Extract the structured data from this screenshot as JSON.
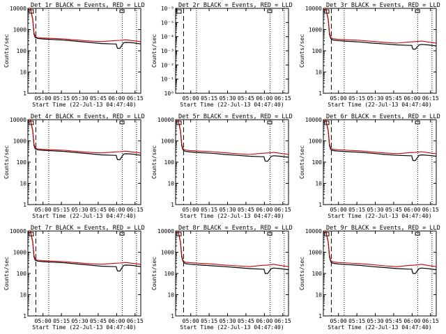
{
  "figure": {
    "xlabel": "Start Time (22-Jul-13 04:47:40)",
    "ylabel": "Counts/sec"
  },
  "colors": {
    "events": "#000000",
    "lld": "#cc0000"
  },
  "chart_data": [
    {
      "type": "line",
      "title": "Det 1r BLACK = Events, RED = LLD",
      "xlabel": "Start Time (22-Jul-13 04:47:40)",
      "ylabel": "Counts/sec",
      "x_ticks": [
        "05:00",
        "05:15",
        "05:30",
        "05:45",
        "06:00",
        "06:15"
      ],
      "y_ticks": [
        "1",
        "10",
        "100",
        "1000",
        "10000"
      ],
      "y_scale": "log",
      "ylim": [
        1,
        10000
      ],
      "x_unit": "minutes since 04:47:40",
      "xlim": [
        0,
        92
      ],
      "dashed_line_x": [
        6.5
      ],
      "dotted_lines_x": [
        17,
        77,
        88.5
      ],
      "series": [
        {
          "color": "#000000",
          "x": [
            0,
            2,
            4,
            5,
            6,
            7,
            8,
            12,
            20,
            30,
            40,
            50,
            60,
            70,
            72,
            73,
            75,
            78,
            80,
            85,
            92
          ],
          "values": [
            10000,
            10000,
            3000,
            600,
            420,
            400,
            380,
            360,
            340,
            320,
            280,
            250,
            220,
            210,
            210,
            130,
            130,
            240,
            250,
            240,
            210
          ]
        },
        {
          "color": "#cc0000",
          "x": [
            0,
            2,
            4,
            5,
            6,
            7,
            8,
            12,
            20,
            30,
            40,
            50,
            60,
            70,
            75,
            78,
            80,
            85,
            92
          ],
          "values": [
            10000,
            10000,
            3000,
            700,
            480,
            440,
            420,
            400,
            380,
            360,
            320,
            290,
            270,
            300,
            310,
            320,
            330,
            300,
            270
          ]
        }
      ]
    },
    {
      "type": "line",
      "title": "Det 2r BLACK = Events, RED = LLD",
      "xlabel": "Start Time (22-Jul-13 04:47:40)",
      "ylabel": "Counts/sec",
      "x_ticks": [
        "05:00",
        "05:15",
        "05:30",
        "05:45",
        "06:00",
        "06:15"
      ],
      "y_ticks": [
        "10⁰",
        "10⁻¹",
        "10⁻²",
        "10⁻³",
        "10⁻⁴",
        "10⁻⁵",
        "10⁻⁶"
      ],
      "y_scale": "log",
      "ylim": [
        1e-06,
        1
      ],
      "x_unit": "minutes since 04:47:40",
      "xlim": [
        0,
        92
      ],
      "dashed_line_x": [
        6.5
      ],
      "dotted_lines_x": [
        17,
        77,
        88.5
      ],
      "series": []
    },
    {
      "type": "line",
      "title": "Det 3r BLACK = Events, RED = LLD",
      "xlabel": "Start Time (22-Jul-13 04:47:40)",
      "ylabel": "Counts/sec",
      "x_ticks": [
        "05:00",
        "05:15",
        "05:30",
        "05:45",
        "06:00",
        "06:15"
      ],
      "y_ticks": [
        "1",
        "10",
        "100",
        "1000",
        "10000"
      ],
      "y_scale": "log",
      "ylim": [
        1,
        10000
      ],
      "x_unit": "minutes since 04:47:40",
      "xlim": [
        0,
        92
      ],
      "dashed_line_x": [
        6.5
      ],
      "dotted_lines_x": [
        17,
        77,
        88.5
      ],
      "series": [
        {
          "color": "#000000",
          "x": [
            0,
            2,
            4,
            5,
            6,
            7,
            8,
            12,
            20,
            30,
            40,
            50,
            60,
            70,
            72,
            73,
            75,
            78,
            80,
            85,
            92
          ],
          "values": [
            10000,
            10000,
            3000,
            600,
            380,
            340,
            320,
            300,
            280,
            260,
            230,
            210,
            190,
            180,
            180,
            120,
            120,
            190,
            200,
            190,
            170
          ]
        },
        {
          "color": "#cc0000",
          "x": [
            0,
            2,
            4,
            5,
            6,
            7,
            8,
            12,
            20,
            30,
            40,
            50,
            60,
            70,
            75,
            78,
            80,
            85,
            92
          ],
          "values": [
            10000,
            10000,
            3000,
            700,
            440,
            390,
            370,
            350,
            330,
            310,
            280,
            250,
            230,
            260,
            270,
            280,
            290,
            260,
            230
          ]
        }
      ]
    },
    {
      "type": "line",
      "title": "Det 4r BLACK = Events, RED = LLD",
      "xlabel": "Start Time (22-Jul-13 04:47:40)",
      "ylabel": "Counts/sec",
      "x_ticks": [
        "05:00",
        "05:15",
        "05:30",
        "05:45",
        "06:00",
        "06:15"
      ],
      "y_ticks": [
        "1",
        "10",
        "100",
        "1000",
        "10000"
      ],
      "y_scale": "log",
      "ylim": [
        1,
        10000
      ],
      "x_unit": "minutes since 04:47:40",
      "xlim": [
        0,
        92
      ],
      "dashed_line_x": [
        6.5
      ],
      "dotted_lines_x": [
        17,
        77,
        88.5
      ],
      "series": [
        {
          "color": "#000000",
          "x": [
            0,
            2,
            4,
            5,
            6,
            7,
            8,
            12,
            20,
            30,
            40,
            50,
            60,
            70,
            72,
            73,
            75,
            78,
            80,
            85,
            92
          ],
          "values": [
            10000,
            10000,
            3000,
            600,
            420,
            400,
            380,
            360,
            340,
            320,
            280,
            250,
            220,
            210,
            210,
            130,
            130,
            240,
            250,
            240,
            210
          ]
        },
        {
          "color": "#cc0000",
          "x": [
            0,
            2,
            4,
            5,
            6,
            7,
            8,
            12,
            20,
            30,
            40,
            50,
            60,
            70,
            75,
            78,
            80,
            85,
            92
          ],
          "values": [
            10000,
            10000,
            3000,
            700,
            480,
            440,
            420,
            400,
            380,
            360,
            320,
            290,
            270,
            300,
            310,
            320,
            330,
            300,
            270
          ]
        }
      ]
    },
    {
      "type": "line",
      "title": "Det 5r BLACK = Events, RED = LLD",
      "xlabel": "Start Time (22-Jul-13 04:47:40)",
      "ylabel": "Counts/sec",
      "x_ticks": [
        "05:00",
        "05:15",
        "05:30",
        "05:45",
        "06:00",
        "06:15"
      ],
      "y_ticks": [
        "1",
        "10",
        "100",
        "1000",
        "10000"
      ],
      "y_scale": "log",
      "ylim": [
        1,
        10000
      ],
      "x_unit": "minutes since 04:47:40",
      "xlim": [
        0,
        92
      ],
      "dashed_line_x": [
        6.5
      ],
      "dotted_lines_x": [
        17,
        77,
        88.5
      ],
      "series": [
        {
          "color": "#000000",
          "x": [
            0,
            2,
            4,
            5,
            6,
            7,
            8,
            12,
            20,
            30,
            40,
            50,
            60,
            70,
            72,
            73,
            75,
            78,
            80,
            85,
            92
          ],
          "values": [
            10000,
            10000,
            3000,
            600,
            380,
            340,
            320,
            300,
            280,
            260,
            230,
            210,
            190,
            180,
            180,
            110,
            110,
            190,
            200,
            190,
            170
          ]
        },
        {
          "color": "#cc0000",
          "x": [
            0,
            2,
            4,
            5,
            6,
            7,
            8,
            12,
            20,
            30,
            40,
            50,
            60,
            70,
            75,
            78,
            80,
            85,
            92
          ],
          "values": [
            10000,
            10000,
            3000,
            700,
            440,
            390,
            370,
            350,
            330,
            310,
            280,
            250,
            230,
            260,
            270,
            280,
            290,
            260,
            230
          ]
        }
      ]
    },
    {
      "type": "line",
      "title": "Det 6r BLACK = Events, RED = LLD",
      "xlabel": "Start Time (22-Jul-13 04:47:40)",
      "ylabel": "Counts/sec",
      "x_ticks": [
        "05:00",
        "05:15",
        "05:30",
        "05:45",
        "06:00",
        "06:15"
      ],
      "y_ticks": [
        "1",
        "10",
        "100",
        "1000",
        "10000"
      ],
      "y_scale": "log",
      "ylim": [
        1,
        10000
      ],
      "x_unit": "minutes since 04:47:40",
      "xlim": [
        0,
        92
      ],
      "dashed_line_x": [
        6.5
      ],
      "dotted_lines_x": [
        17,
        77,
        88.5
      ],
      "series": [
        {
          "color": "#000000",
          "x": [
            0,
            2,
            4,
            5,
            6,
            7,
            8,
            12,
            20,
            30,
            40,
            50,
            60,
            70,
            72,
            73,
            75,
            78,
            80,
            85,
            92
          ],
          "values": [
            10000,
            10000,
            3000,
            600,
            400,
            370,
            350,
            330,
            310,
            290,
            260,
            230,
            210,
            200,
            200,
            120,
            120,
            210,
            220,
            210,
            190
          ]
        },
        {
          "color": "#cc0000",
          "x": [
            0,
            2,
            4,
            5,
            6,
            7,
            8,
            12,
            20,
            30,
            40,
            50,
            60,
            70,
            75,
            78,
            80,
            85,
            92
          ],
          "values": [
            10000,
            10000,
            3000,
            700,
            460,
            420,
            400,
            380,
            360,
            340,
            300,
            270,
            250,
            280,
            290,
            300,
            310,
            280,
            250
          ]
        }
      ]
    },
    {
      "type": "line",
      "title": "Det 7r BLACK = Events, RED = LLD",
      "xlabel": "Start Time (22-Jul-13 04:47:40)",
      "ylabel": "Counts/sec",
      "x_ticks": [
        "05:00",
        "05:15",
        "05:30",
        "05:45",
        "06:00",
        "06:15"
      ],
      "y_ticks": [
        "1",
        "10",
        "100",
        "1000",
        "10000"
      ],
      "y_scale": "log",
      "ylim": [
        1,
        10000
      ],
      "x_unit": "minutes since 04:47:40",
      "xlim": [
        0,
        92
      ],
      "dashed_line_x": [
        6.5
      ],
      "dotted_lines_x": [
        17,
        77,
        88.5
      ],
      "series": [
        {
          "color": "#000000",
          "x": [
            0,
            2,
            4,
            5,
            6,
            7,
            8,
            12,
            20,
            30,
            40,
            50,
            60,
            70,
            72,
            73,
            75,
            78,
            80,
            85,
            92
          ],
          "values": [
            10000,
            10000,
            3000,
            600,
            420,
            400,
            380,
            360,
            340,
            320,
            280,
            250,
            220,
            210,
            210,
            130,
            130,
            240,
            250,
            240,
            210
          ]
        },
        {
          "color": "#cc0000",
          "x": [
            0,
            2,
            4,
            5,
            6,
            7,
            8,
            12,
            20,
            30,
            40,
            50,
            60,
            70,
            75,
            78,
            80,
            85,
            92
          ],
          "values": [
            10000,
            10000,
            3000,
            700,
            480,
            440,
            420,
            400,
            380,
            360,
            320,
            290,
            270,
            300,
            310,
            320,
            330,
            300,
            270
          ]
        }
      ]
    },
    {
      "type": "line",
      "title": "Det 8r BLACK = Events, RED = LLD",
      "xlabel": "Start Time (22-Jul-13 04:47:40)",
      "ylabel": "Counts/sec",
      "x_ticks": [
        "05:00",
        "05:15",
        "05:30",
        "05:45",
        "06:00",
        "06:15"
      ],
      "y_ticks": [
        "1",
        "10",
        "100",
        "1000",
        "10000"
      ],
      "y_scale": "log",
      "ylim": [
        1,
        10000
      ],
      "x_unit": "minutes since 04:47:40",
      "xlim": [
        0,
        92
      ],
      "dashed_line_x": [
        6.5
      ],
      "dotted_lines_x": [
        17,
        77,
        88.5
      ],
      "series": [
        {
          "color": "#000000",
          "x": [
            0,
            2,
            4,
            5,
            6,
            7,
            8,
            12,
            20,
            30,
            40,
            50,
            60,
            70,
            72,
            73,
            75,
            78,
            80,
            85,
            92
          ],
          "values": [
            10000,
            10000,
            3000,
            600,
            380,
            320,
            290,
            270,
            250,
            230,
            210,
            190,
            170,
            160,
            160,
            100,
            100,
            170,
            180,
            170,
            150
          ]
        },
        {
          "color": "#cc0000",
          "x": [
            0,
            2,
            4,
            5,
            6,
            7,
            8,
            12,
            20,
            30,
            40,
            50,
            60,
            70,
            75,
            78,
            80,
            85,
            92
          ],
          "values": [
            10000,
            10000,
            3000,
            700,
            420,
            360,
            340,
            320,
            300,
            280,
            250,
            230,
            210,
            240,
            250,
            260,
            270,
            240,
            210
          ]
        }
      ]
    },
    {
      "type": "line",
      "title": "Det 9r BLACK = Events, RED = LLD",
      "xlabel": "Start Time (22-Jul-13 04:47:40)",
      "ylabel": "Counts/sec",
      "x_ticks": [
        "05:00",
        "05:15",
        "05:30",
        "05:45",
        "06:00",
        "06:15"
      ],
      "y_ticks": [
        "1",
        "10",
        "100",
        "1000",
        "10000"
      ],
      "y_scale": "log",
      "ylim": [
        1,
        10000
      ],
      "x_unit": "minutes since 04:47:40",
      "xlim": [
        0,
        92
      ],
      "dashed_line_x": [
        6.5
      ],
      "dotted_lines_x": [
        17,
        77,
        88.5
      ],
      "series": [
        {
          "color": "#000000",
          "x": [
            0,
            2,
            4,
            5,
            6,
            7,
            8,
            12,
            20,
            30,
            40,
            50,
            60,
            70,
            72,
            73,
            75,
            78,
            80,
            85,
            92
          ],
          "values": [
            10000,
            10000,
            3000,
            600,
            360,
            320,
            300,
            280,
            260,
            240,
            210,
            190,
            170,
            160,
            160,
            100,
            100,
            170,
            180,
            170,
            150
          ]
        },
        {
          "color": "#cc0000",
          "x": [
            0,
            2,
            4,
            5,
            6,
            7,
            8,
            12,
            20,
            30,
            40,
            50,
            60,
            70,
            75,
            78,
            80,
            85,
            92
          ],
          "values": [
            10000,
            10000,
            3000,
            700,
            420,
            370,
            350,
            330,
            310,
            290,
            260,
            230,
            210,
            240,
            250,
            260,
            270,
            240,
            210
          ]
        }
      ]
    }
  ]
}
